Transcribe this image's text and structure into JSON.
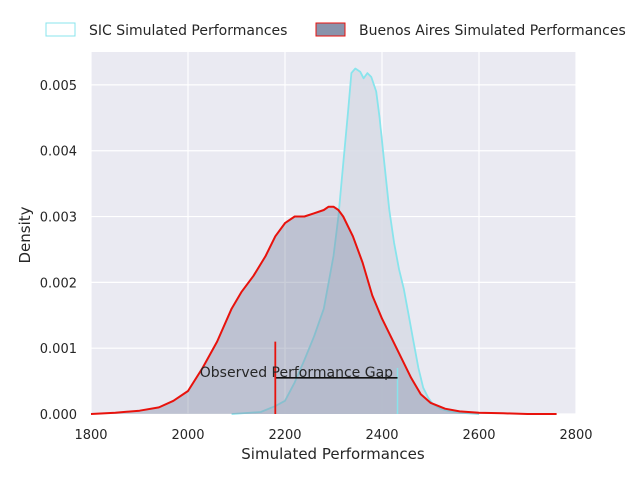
{
  "chart_data": {
    "type": "area",
    "title": "",
    "xlabel": "Simulated Performances",
    "ylabel": "Density",
    "xlim": [
      1800,
      2800
    ],
    "ylim": [
      0,
      0.0055
    ],
    "x_ticks": [
      1800,
      2000,
      2200,
      2400,
      2600,
      2800
    ],
    "y_ticks": [
      0.0,
      0.001,
      0.002,
      0.003,
      0.004,
      0.005
    ],
    "x_tick_labels": [
      "1800",
      "2000",
      "2200",
      "2400",
      "2600",
      "2800"
    ],
    "y_tick_labels": [
      "0.000",
      "0.001",
      "0.002",
      "0.003",
      "0.004",
      "0.005"
    ],
    "grid": true,
    "legend_position": "top, outside plot, two columns",
    "series": [
      {
        "name": "SIC Simulated Performances",
        "edge_color": "#88e4ec",
        "fill_color": "#d8dce6",
        "points": [
          [
            2090,
            0.0
          ],
          [
            2150,
            3e-05
          ],
          [
            2180,
            0.00012
          ],
          [
            2200,
            0.0002
          ],
          [
            2220,
            0.00048
          ],
          [
            2240,
            0.00082
          ],
          [
            2260,
            0.00118
          ],
          [
            2280,
            0.0016
          ],
          [
            2300,
            0.0024
          ],
          [
            2310,
            0.003
          ],
          [
            2320,
            0.0038
          ],
          [
            2330,
            0.0046
          ],
          [
            2337,
            0.00518
          ],
          [
            2345,
            0.00525
          ],
          [
            2355,
            0.0052
          ],
          [
            2362,
            0.0051
          ],
          [
            2370,
            0.00518
          ],
          [
            2378,
            0.00512
          ],
          [
            2388,
            0.0049
          ],
          [
            2395,
            0.0045
          ],
          [
            2405,
            0.0038
          ],
          [
            2415,
            0.0031
          ],
          [
            2425,
            0.0026
          ],
          [
            2435,
            0.0022
          ],
          [
            2445,
            0.0019
          ],
          [
            2455,
            0.0015
          ],
          [
            2465,
            0.0011
          ],
          [
            2475,
            0.0007
          ],
          [
            2485,
            0.0004
          ],
          [
            2495,
            0.00025
          ],
          [
            2505,
            0.00015
          ],
          [
            2520,
            8e-05
          ],
          [
            2540,
            4e-05
          ],
          [
            2560,
            2e-05
          ],
          [
            2580,
            1e-05
          ],
          [
            2600,
            0.0
          ]
        ]
      },
      {
        "name": "Buenos Aires Simulated Performances",
        "edge_color": "#e8120c",
        "fill_color": "#8a93ab",
        "points": [
          [
            1800,
            0.0
          ],
          [
            1850,
            2e-05
          ],
          [
            1900,
            5e-05
          ],
          [
            1940,
            0.0001
          ],
          [
            1970,
            0.0002
          ],
          [
            2000,
            0.00035
          ],
          [
            2030,
            0.0007
          ],
          [
            2060,
            0.0011
          ],
          [
            2090,
            0.0016
          ],
          [
            2110,
            0.00185
          ],
          [
            2135,
            0.0021
          ],
          [
            2160,
            0.0024
          ],
          [
            2180,
            0.0027
          ],
          [
            2200,
            0.0029
          ],
          [
            2220,
            0.003
          ],
          [
            2240,
            0.003
          ],
          [
            2260,
            0.00305
          ],
          [
            2280,
            0.0031
          ],
          [
            2290,
            0.00315
          ],
          [
            2300,
            0.00315
          ],
          [
            2310,
            0.0031
          ],
          [
            2320,
            0.003
          ],
          [
            2340,
            0.0027
          ],
          [
            2360,
            0.0023
          ],
          [
            2380,
            0.0018
          ],
          [
            2400,
            0.00145
          ],
          [
            2420,
            0.00115
          ],
          [
            2440,
            0.00085
          ],
          [
            2460,
            0.00055
          ],
          [
            2480,
            0.0003
          ],
          [
            2500,
            0.00017
          ],
          [
            2530,
            8e-05
          ],
          [
            2560,
            4e-05
          ],
          [
            2600,
            2e-05
          ],
          [
            2650,
            1e-05
          ],
          [
            2700,
            0.0
          ],
          [
            2760,
            0.0
          ]
        ]
      }
    ],
    "annotation": {
      "text": "Observed Performance Gap",
      "from_x": 2180,
      "to_x": 2432,
      "y": 0.00055,
      "marker_x": 2180,
      "marker_top": 0.0011,
      "marker_color": "#e8120c",
      "line_color": "#111111"
    }
  }
}
